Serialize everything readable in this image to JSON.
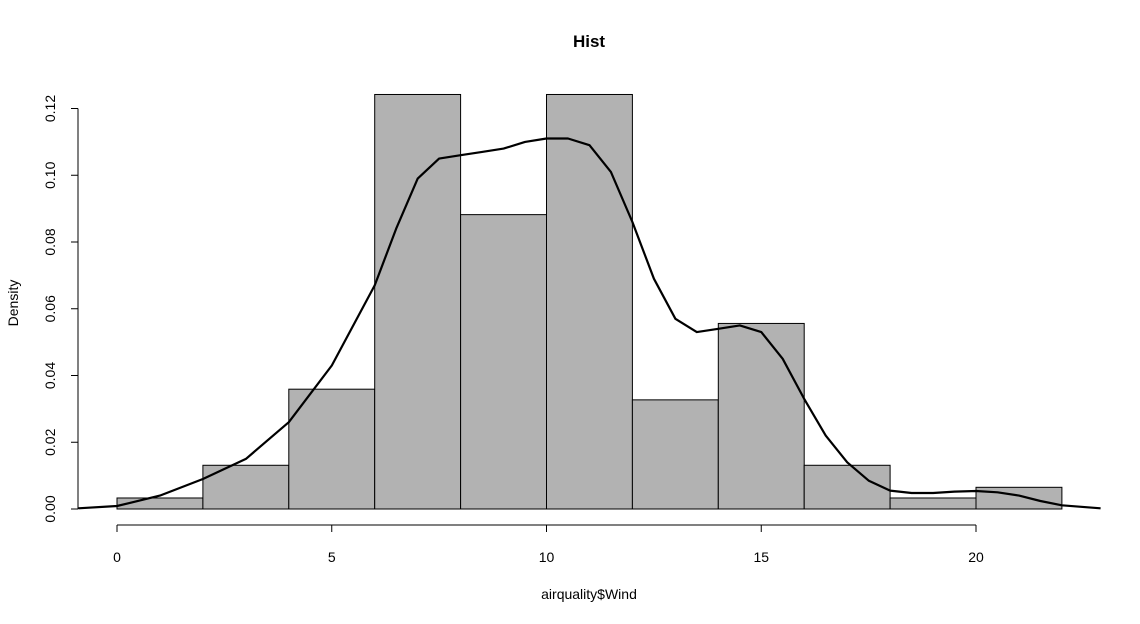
{
  "chart_data": {
    "type": "bar",
    "subtype": "histogram-with-density",
    "title": "Hist",
    "xlabel": "airquality$Wind",
    "ylabel": "Density",
    "bins": [
      {
        "x0": 0,
        "x1": 2,
        "density": 0.0033
      },
      {
        "x0": 2,
        "x1": 4,
        "density": 0.0131
      },
      {
        "x0": 4,
        "x1": 6,
        "density": 0.0359
      },
      {
        "x0": 6,
        "x1": 8,
        "density": 0.1242
      },
      {
        "x0": 8,
        "x1": 10,
        "density": 0.0882
      },
      {
        "x0": 10,
        "x1": 12,
        "density": 0.1242
      },
      {
        "x0": 12,
        "x1": 14,
        "density": 0.0327
      },
      {
        "x0": 14,
        "x1": 16,
        "density": 0.0556
      },
      {
        "x0": 16,
        "x1": 18,
        "density": 0.0131
      },
      {
        "x0": 18,
        "x1": 20,
        "density": 0.0033
      },
      {
        "x0": 20,
        "x1": 22,
        "density": 0.0065
      }
    ],
    "density_curve": {
      "x": [
        -0.9,
        0,
        1,
        2,
        3,
        4,
        5,
        6,
        6.5,
        7,
        7.5,
        8,
        8.5,
        9,
        9.5,
        10,
        10.5,
        11,
        11.5,
        12,
        12.5,
        13,
        13.5,
        14,
        14.5,
        15,
        15.5,
        16,
        16.5,
        17,
        17.5,
        18,
        18.5,
        19,
        19.5,
        20,
        20.5,
        21,
        21.5,
        22,
        22.9
      ],
      "y": [
        0.0002,
        0.0009,
        0.004,
        0.009,
        0.015,
        0.026,
        0.043,
        0.067,
        0.084,
        0.099,
        0.105,
        0.106,
        0.107,
        0.108,
        0.11,
        0.111,
        0.111,
        0.109,
        0.101,
        0.086,
        0.069,
        0.057,
        0.053,
        0.054,
        0.055,
        0.053,
        0.045,
        0.033,
        0.022,
        0.014,
        0.0085,
        0.0055,
        0.0048,
        0.0048,
        0.0052,
        0.0054,
        0.005,
        0.004,
        0.0024,
        0.0011,
        0.0002
      ]
    },
    "xlim": [
      0,
      22
    ],
    "ylim": [
      0,
      0.12
    ],
    "xticks": [
      0,
      5,
      10,
      15,
      20
    ],
    "yticks": [
      0,
      0.02,
      0.04,
      0.06,
      0.08,
      0.1,
      0.12
    ],
    "xtick_labels": [
      "0",
      "5",
      "10",
      "15",
      "20"
    ],
    "ytick_labels": [
      "0.00",
      "0.02",
      "0.04",
      "0.06",
      "0.08",
      "0.10",
      "0.12"
    ],
    "bar_color": "#b2b2b2",
    "bar_stroke": "#000000",
    "curve_color": "#000000",
    "grid": false,
    "legend": "none"
  }
}
